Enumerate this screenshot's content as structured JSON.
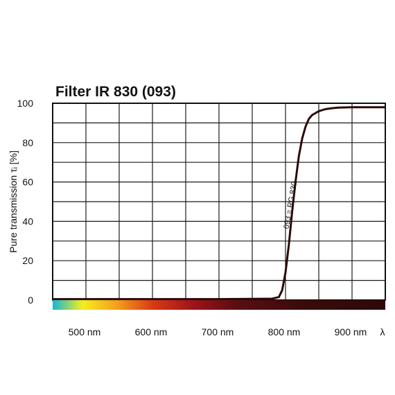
{
  "chart_data": {
    "type": "line",
    "title": "Filter IR 830 (093)",
    "ylabel": "Pure transmission τᵢ [%]",
    "xlabel": "λ",
    "ylim": [
      0,
      100
    ],
    "xlim": [
      450,
      950
    ],
    "y_ticks": [
      "0",
      "20",
      "40",
      "60",
      "80",
      "100"
    ],
    "x_ticks": [
      {
        "value": 500,
        "label": "500 nm"
      },
      {
        "value": 600,
        "label": "600 nm"
      },
      {
        "value": 700,
        "label": "700 nm"
      },
      {
        "value": 800,
        "label": "800 nm"
      },
      {
        "value": 900,
        "label": "900 nm"
      }
    ],
    "grid": true,
    "curve_annotation": "093 = RG 830",
    "series": [
      {
        "x": [
          450,
          700,
          780,
          790,
          795,
          800,
          805,
          810,
          815,
          820,
          825,
          830,
          835,
          840,
          850,
          860,
          870,
          880,
          900,
          950
        ],
        "y": [
          0.5,
          0.5,
          0.7,
          1.5,
          5,
          14,
          28,
          45,
          60,
          73,
          82,
          88,
          92,
          94,
          96,
          97,
          97.5,
          97.8,
          98,
          98
        ]
      }
    ],
    "colors": {
      "curve": "#2a0a0a",
      "spectrum": [
        "#14b8d4",
        "#f5ee1e",
        "#f4a21e",
        "#d93a14",
        "#a0141a",
        "#5a0e12",
        "#3a0b0b",
        "#2e0909"
      ]
    }
  }
}
